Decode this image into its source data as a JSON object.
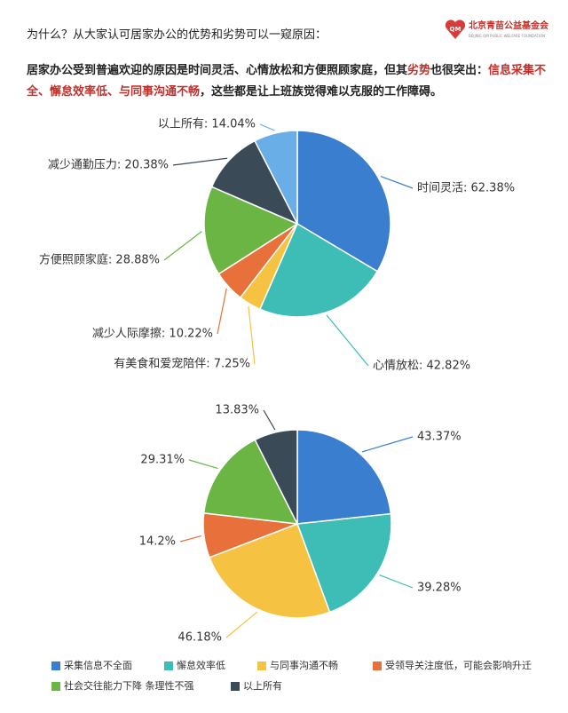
{
  "header": {
    "intro": "为什么？从大家认可居家办公的优势和劣势可以一窥原因：",
    "logo": {
      "mark": "QM",
      "name": "北京青苗公益基金会",
      "subtitle": "BEIJING QM PUBLIC WELFARE FOUNDATION"
    }
  },
  "paragraph": [
    {
      "text": "居家办公受到普遍欢迎的原因是时间灵活、心情放松和方便照顾家庭，但其",
      "highlight": false
    },
    {
      "text": "劣势",
      "highlight": true
    },
    {
      "text": "也很突出：",
      "highlight": false
    },
    {
      "text": "信息采集不全、懈怠效率低、与同事沟通不畅",
      "highlight": true
    },
    {
      "text": "，这些都是让上班族觉得难以克服的工作障碍。",
      "highlight": false
    }
  ],
  "chart_data": [
    {
      "type": "pie",
      "categories": [
        "时间灵活",
        "心情放松",
        "有美食和爱宠陪伴",
        "减少人际摩擦",
        "方便照顾家庭",
        "减少通勤压力",
        "以上所有"
      ],
      "values": [
        62.38,
        42.82,
        7.25,
        10.22,
        28.88,
        20.38,
        14.04
      ],
      "value_labels": [
        "时间灵活: 62.38%",
        "心情放松: 42.82%",
        "有美食和爱宠陪伴: 7.25%",
        "减少人际摩擦: 10.22%",
        "方便照顾家庭: 28.88%",
        "减少通勤压力: 20.38%",
        "以上所有: 14.04%"
      ],
      "colors": [
        "#3a7fcf",
        "#3dbdb6",
        "#f5c242",
        "#e8703a",
        "#6ab544",
        "#3a4a56",
        "#6aaee8"
      ]
    },
    {
      "type": "pie",
      "categories": [
        "采集信息不全面",
        "懈怠效率低",
        "与同事沟通不畅",
        "受领导关注度低，可能会影响升迁",
        "社会交往能力下降 条理性不强",
        "以上所有"
      ],
      "values": [
        43.37,
        39.28,
        46.18,
        14.2,
        29.31,
        13.83
      ],
      "value_labels": [
        "43.37%",
        "39.28%",
        "46.18%",
        "14.2%",
        "29.31%",
        "13.83%"
      ],
      "colors": [
        "#3a7fcf",
        "#3dbdb6",
        "#f5c242",
        "#e8703a",
        "#6ab544",
        "#3a4a56"
      ],
      "legend": "bottom"
    }
  ]
}
